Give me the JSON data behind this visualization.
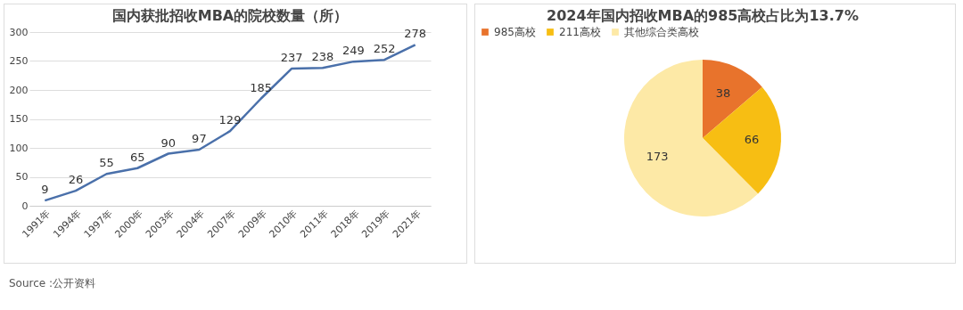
{
  "chart_data": [
    {
      "type": "line",
      "title": "国内获批招收MBA的院校数量（所）",
      "categories": [
        "1991年",
        "1994年",
        "1997年",
        "2000年",
        "2003年",
        "2004年",
        "2007年",
        "2009年",
        "2010年",
        "2011年",
        "2018年",
        "2019年",
        "2021年"
      ],
      "series": [
        {
          "color": "#4a70aa",
          "values": [
            9,
            26,
            55,
            65,
            90,
            97,
            129,
            185,
            237,
            238,
            249,
            252,
            278
          ]
        }
      ],
      "ylim": [
        0,
        300
      ],
      "yticks": [
        0,
        50,
        100,
        150,
        200,
        250,
        300
      ],
      "grid": "y",
      "data_labels": true,
      "marker": "none",
      "annotations": [
        "Source :公开资料"
      ]
    },
    {
      "type": "pie",
      "title": "2024年国内招收MBA的985高校占比为13.7%",
      "categories": [
        "985高校",
        "211高校",
        "其他综合类高校"
      ],
      "values": [
        38,
        66,
        173
      ],
      "colors": [
        "#e8732c",
        "#f7be13",
        "#fde9a6"
      ],
      "data_labels": true,
      "legend": "top"
    }
  ]
}
